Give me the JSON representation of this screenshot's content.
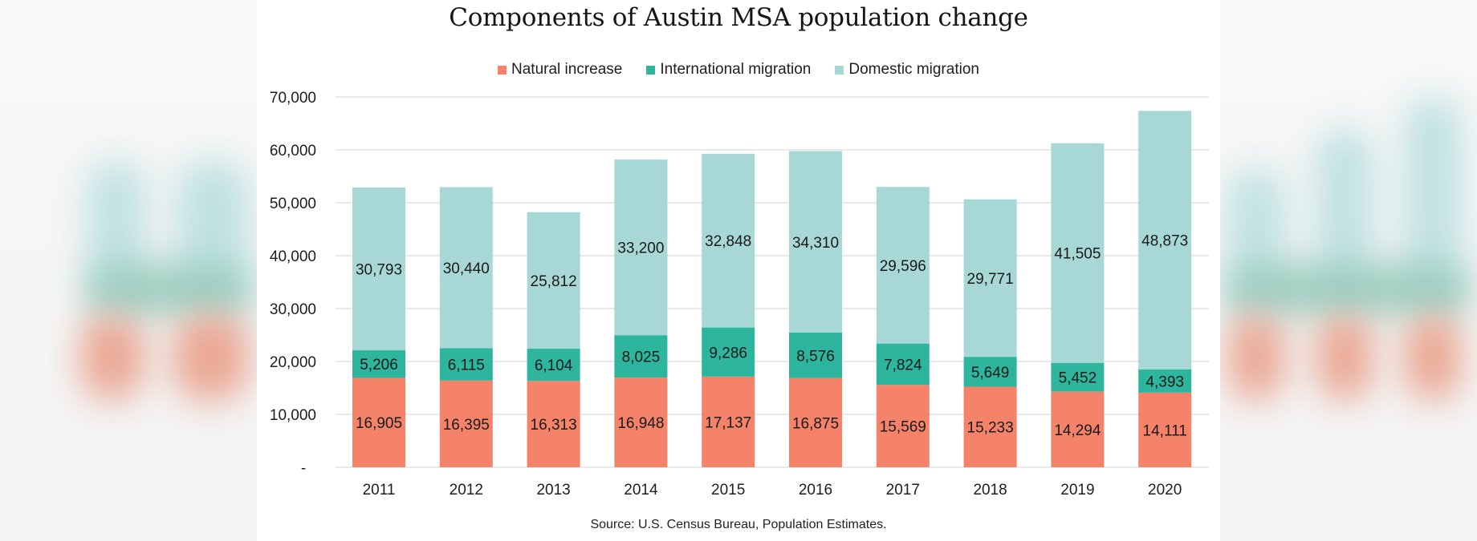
{
  "chart_data": {
    "type": "bar",
    "stacked": true,
    "title": "Components of Austin MSA population change",
    "xlabel": "",
    "ylabel": "",
    "categories": [
      "2011",
      "2012",
      "2013",
      "2014",
      "2015",
      "2016",
      "2017",
      "2018",
      "2019",
      "2020"
    ],
    "series": [
      {
        "name": "Natural increase",
        "color": "#F4836A",
        "values": [
          16905,
          16395,
          16313,
          16948,
          17137,
          16875,
          15569,
          15233,
          14294,
          14111
        ],
        "labels": [
          "16,905",
          "16,395",
          "16,313",
          "16,948",
          "17,137",
          "16,875",
          "15,569",
          "15,233",
          "14,294",
          "14,111"
        ]
      },
      {
        "name": "International migration",
        "color": "#2DB59E",
        "values": [
          5206,
          6115,
          6104,
          8025,
          9286,
          8576,
          7824,
          5649,
          5452,
          4393
        ],
        "labels": [
          "5,206",
          "6,115",
          "6,104",
          "8,025",
          "9,286",
          "8,576",
          "7,824",
          "5,649",
          "5,452",
          "4,393"
        ]
      },
      {
        "name": "Domestic migration",
        "color": "#A8D8D6",
        "values": [
          30793,
          30440,
          25812,
          33200,
          32848,
          34310,
          29596,
          29771,
          41505,
          48873
        ],
        "labels": [
          "30,793",
          "30,440",
          "25,812",
          "33,200",
          "32,848",
          "34,310",
          "29,596",
          "29,771",
          "41,505",
          "48,873"
        ]
      }
    ],
    "ylim": [
      0,
      70000
    ],
    "yticks": [
      0,
      10000,
      20000,
      30000,
      40000,
      50000,
      60000,
      70000
    ],
    "ytick_labels": [
      "-",
      "10,000",
      "20,000",
      "30,000",
      "40,000",
      "50,000",
      "60,000",
      "70,000"
    ],
    "grid": true,
    "legend_position": "top-center",
    "source": "Source:  U.S. Census Bureau, Population Estimates."
  }
}
